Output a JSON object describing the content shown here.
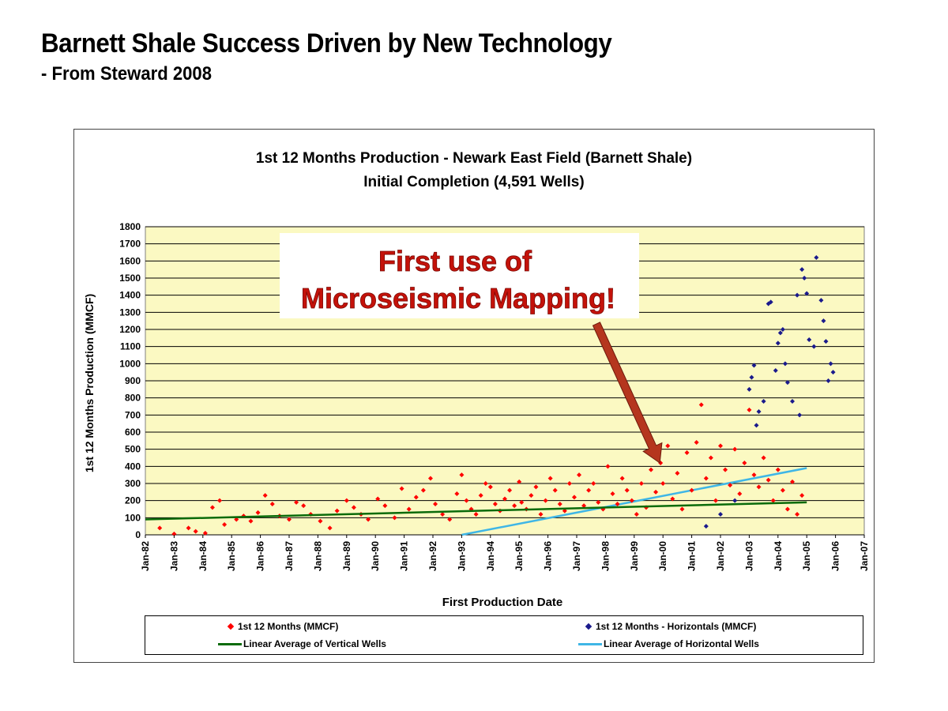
{
  "slide": {
    "title": "Barnett Shale Success Driven by New Technology",
    "subtitle": "- From Steward 2008"
  },
  "colors": {
    "plot_bg": "#fbf9c2",
    "vertical_wells": "#ff0000",
    "horizontal_wells": "#1a1a8c",
    "vertical_trend": "#0a6b0a",
    "horizontal_trend": "#3fb6e6",
    "annotation_text": "#c4120a",
    "annotation_arrow": "#b5361e"
  },
  "annotation": {
    "line1": "First use of",
    "line2": "Microseismic Mapping!",
    "points_to": "Jan-00"
  },
  "legend": {
    "vertical": "1st 12 Months (MMCF)",
    "horizontal": "1st 12 Months - Horizontals (MMCF)",
    "vertical_trend": "Linear Average of Vertical Wells",
    "horizontal_trend": "Linear Average of Horizontal Wells"
  },
  "chart_data": {
    "type": "scatter",
    "title": "1st 12 Months Production - Newark East Field (Barnett Shale)",
    "subtitle": "Initial Completion (4,591 Wells)",
    "xlabel": "First Production Date",
    "ylabel": "1st 12 Months Production (MMCF)",
    "x_ticks": [
      "Jan-82",
      "Jan-83",
      "Jan-84",
      "Jan-85",
      "Jan-86",
      "Jan-87",
      "Jan-88",
      "Jan-89",
      "Jan-90",
      "Jan-91",
      "Jan-92",
      "Jan-93",
      "Jan-94",
      "Jan-95",
      "Jan-96",
      "Jan-97",
      "Jan-98",
      "Jan-99",
      "Jan-00",
      "Jan-01",
      "Jan-02",
      "Jan-03",
      "Jan-04",
      "Jan-05",
      "Jan-06",
      "Jan-07"
    ],
    "xlim": [
      "Jan-82",
      "Jan-07"
    ],
    "y_ticks": [
      0,
      100,
      200,
      300,
      400,
      500,
      600,
      700,
      800,
      900,
      1000,
      1100,
      1200,
      1300,
      1400,
      1500,
      1600,
      1700,
      1800
    ],
    "ylim": [
      0,
      1800
    ],
    "grid": true,
    "legend_position": "bottom",
    "series": [
      {
        "name": "1st 12 Months (MMCF)",
        "marker": "diamond",
        "points": [
          [
            "Jul-82",
            40
          ],
          [
            "Jan-83",
            5
          ],
          [
            "Jul-83",
            40
          ],
          [
            "Oct-83",
            20
          ],
          [
            "Feb-84",
            10
          ],
          [
            "May-84",
            160
          ],
          [
            "Aug-84",
            200
          ],
          [
            "Oct-84",
            60
          ],
          [
            "Mar-85",
            90
          ],
          [
            "Jun-85",
            110
          ],
          [
            "Sep-85",
            80
          ],
          [
            "Dec-85",
            130
          ],
          [
            "Mar-86",
            230
          ],
          [
            "Jun-86",
            180
          ],
          [
            "Sep-86",
            110
          ],
          [
            "Jan-87",
            90
          ],
          [
            "Apr-87",
            190
          ],
          [
            "Jul-87",
            170
          ],
          [
            "Oct-87",
            120
          ],
          [
            "Feb-88",
            80
          ],
          [
            "Jun-88",
            40
          ],
          [
            "Sep-88",
            140
          ],
          [
            "Jan-89",
            200
          ],
          [
            "Apr-89",
            160
          ],
          [
            "Jul-89",
            120
          ],
          [
            "Oct-89",
            90
          ],
          [
            "Feb-90",
            210
          ],
          [
            "May-90",
            170
          ],
          [
            "Sep-90",
            100
          ],
          [
            "Dec-90",
            270
          ],
          [
            "Mar-91",
            150
          ],
          [
            "Jun-91",
            220
          ],
          [
            "Sep-91",
            260
          ],
          [
            "Dec-91",
            330
          ],
          [
            "Feb-92",
            180
          ],
          [
            "May-92",
            120
          ],
          [
            "Aug-92",
            90
          ],
          [
            "Nov-92",
            240
          ],
          [
            "Jan-93",
            350
          ],
          [
            "Mar-93",
            200
          ],
          [
            "May-93",
            150
          ],
          [
            "Jul-93",
            120
          ],
          [
            "Sep-93",
            230
          ],
          [
            "Nov-93",
            300
          ],
          [
            "Jan-94",
            280
          ],
          [
            "Mar-94",
            180
          ],
          [
            "May-94",
            140
          ],
          [
            "Jul-94",
            210
          ],
          [
            "Sep-94",
            260
          ],
          [
            "Nov-94",
            170
          ],
          [
            "Jan-95",
            310
          ],
          [
            "Feb-95",
            190
          ],
          [
            "Apr-95",
            150
          ],
          [
            "Jun-95",
            230
          ],
          [
            "Aug-95",
            280
          ],
          [
            "Oct-95",
            120
          ],
          [
            "Dec-95",
            200
          ],
          [
            "Feb-96",
            330
          ],
          [
            "Apr-96",
            260
          ],
          [
            "Jun-96",
            180
          ],
          [
            "Aug-96",
            140
          ],
          [
            "Oct-96",
            300
          ],
          [
            "Dec-96",
            220
          ],
          [
            "Feb-97",
            350
          ],
          [
            "Apr-97",
            170
          ],
          [
            "Jun-97",
            260
          ],
          [
            "Aug-97",
            300
          ],
          [
            "Oct-97",
            190
          ],
          [
            "Dec-97",
            150
          ],
          [
            "Feb-98",
            400
          ],
          [
            "Apr-98",
            240
          ],
          [
            "Jun-98",
            180
          ],
          [
            "Aug-98",
            330
          ],
          [
            "Oct-98",
            260
          ],
          [
            "Dec-98",
            200
          ],
          [
            "Feb-99",
            120
          ],
          [
            "Apr-99",
            300
          ],
          [
            "Jun-99",
            160
          ],
          [
            "Aug-99",
            380
          ],
          [
            "Oct-99",
            250
          ],
          [
            "Dec-99",
            420
          ],
          [
            "Jan-00",
            300
          ],
          [
            "Mar-00",
            520
          ],
          [
            "May-00",
            210
          ],
          [
            "Jul-00",
            360
          ],
          [
            "Sep-00",
            150
          ],
          [
            "Nov-00",
            480
          ],
          [
            "Jan-01",
            260
          ],
          [
            "Mar-01",
            540
          ],
          [
            "May-01",
            760
          ],
          [
            "Jul-01",
            330
          ],
          [
            "Sep-01",
            450
          ],
          [
            "Nov-01",
            200
          ],
          [
            "Jan-02",
            520
          ],
          [
            "Mar-02",
            380
          ],
          [
            "May-02",
            290
          ],
          [
            "Jul-02",
            500
          ],
          [
            "Sep-02",
            240
          ],
          [
            "Nov-02",
            420
          ],
          [
            "Jan-03",
            730
          ],
          [
            "Mar-03",
            350
          ],
          [
            "May-03",
            280
          ],
          [
            "Jul-03",
            450
          ],
          [
            "Sep-03",
            320
          ],
          [
            "Nov-03",
            200
          ],
          [
            "Jan-04",
            380
          ],
          [
            "Mar-04",
            260
          ],
          [
            "May-04",
            150
          ],
          [
            "Jul-04",
            310
          ],
          [
            "Sep-04",
            120
          ],
          [
            "Nov-04",
            230
          ]
        ]
      },
      {
        "name": "1st 12 Months - Horizontals (MMCF)",
        "marker": "diamond",
        "points": [
          [
            "Jul-01",
            50
          ],
          [
            "Jan-02",
            120
          ],
          [
            "Jul-02",
            200
          ],
          [
            "Jan-03",
            850
          ],
          [
            "Feb-03",
            920
          ],
          [
            "Mar-03",
            990
          ],
          [
            "Apr-03",
            640
          ],
          [
            "May-03",
            720
          ],
          [
            "Jul-03",
            780
          ],
          [
            "Sep-03",
            1350
          ],
          [
            "Oct-03",
            1360
          ],
          [
            "Dec-03",
            960
          ],
          [
            "Jan-04",
            1120
          ],
          [
            "Feb-04",
            1180
          ],
          [
            "Mar-04",
            1200
          ],
          [
            "Apr-04",
            1000
          ],
          [
            "May-04",
            890
          ],
          [
            "Jul-04",
            780
          ],
          [
            "Sep-04",
            1400
          ],
          [
            "Oct-04",
            700
          ],
          [
            "Nov-04",
            1550
          ],
          [
            "Dec-04",
            1500
          ],
          [
            "Jan-05",
            1410
          ],
          [
            "Feb-05",
            1140
          ],
          [
            "Apr-05",
            1100
          ],
          [
            "May-05",
            1620
          ],
          [
            "Jul-05",
            1370
          ],
          [
            "Aug-05",
            1250
          ],
          [
            "Sep-05",
            1130
          ],
          [
            "Oct-05",
            900
          ],
          [
            "Nov-05",
            1000
          ],
          [
            "Dec-05",
            950
          ]
        ]
      },
      {
        "name": "Linear Average of Vertical Wells",
        "marker": "line",
        "points": [
          [
            "Jan-82",
            90
          ],
          [
            "Jan-05",
            190
          ]
        ]
      },
      {
        "name": "Linear Average of Horizontal Wells",
        "marker": "line",
        "points": [
          [
            "Jan-93",
            0
          ],
          [
            "Jan-05",
            390
          ]
        ]
      }
    ]
  }
}
